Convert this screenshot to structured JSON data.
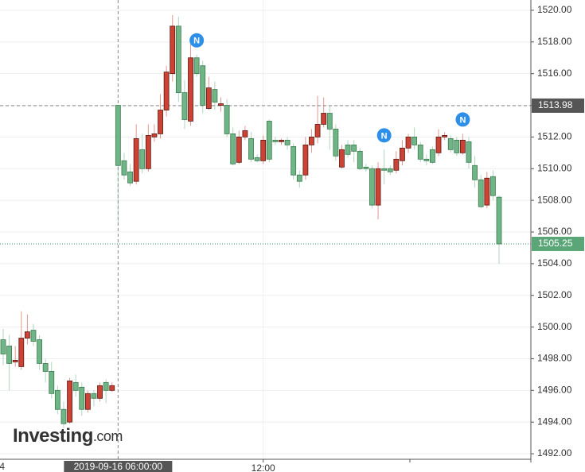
{
  "chart_data": {
    "type": "candlestick",
    "categories": [
      "4",
      null,
      null,
      null,
      null,
      null,
      null,
      null,
      null,
      null,
      null,
      null,
      null,
      null,
      null,
      null,
      null,
      null,
      null,
      "2019-09-16 06:00:00",
      null,
      null,
      null,
      null,
      null,
      null,
      null,
      null,
      null,
      null,
      null,
      null,
      null,
      null,
      null,
      null,
      null,
      null,
      null,
      null,
      null,
      null,
      null,
      "12:00",
      null,
      null,
      null,
      null,
      null,
      null,
      null,
      null,
      null,
      null,
      null,
      null,
      null,
      null,
      null,
      null,
      null,
      null,
      null,
      null,
      null,
      null,
      null,
      null,
      null,
      null,
      null,
      null,
      null,
      null,
      null,
      null,
      null,
      null,
      null,
      null,
      null,
      null,
      null
    ],
    "open": [
      1499.2,
      1498.8,
      1497.8,
      1497.5,
      1499.3,
      1499.8,
      1499.2,
      1497.7,
      1497.2,
      1496.0,
      1494.8,
      1494.0,
      1496.5,
      1496.2,
      1494.8,
      1495.8,
      1495.5,
      1496.5,
      1496.0,
      1514.0,
      1510.5,
      1509.8,
      1509.2,
      1511.2,
      1510.0,
      1512.0,
      1512.2,
      1513.7,
      1516.0,
      1519.0,
      1514.8,
      1513.0,
      1517.0,
      1516.5,
      1513.8,
      1515.0,
      1514.0,
      1514.0,
      1512.2,
      1510.4,
      1512.0,
      1511.9,
      1510.7,
      1510.5,
      1513.0,
      1511.8,
      1511.7,
      1511.8,
      1511.4,
      1509.6,
      1509.6,
      1511.5,
      1512.0,
      1512.8,
      1513.5,
      1512.5,
      1510.1,
      1511.5,
      1511.5,
      1511.1,
      1510.1,
      1510.0,
      1507.7,
      1510.0,
      1510.0,
      1509.9,
      1510.5,
      1511.3,
      1512.0,
      1511.5,
      1510.6,
      1511.2,
      1511.0,
      1512.0,
      1511.9,
      1511.8,
      1511.0,
      1511.7,
      1510.2,
      1509.3,
      1507.7,
      1509.5,
      1508.2
    ],
    "high": [
      1499.9,
      1499.5,
      1498.8,
      1501.0,
      1500.8,
      1500.2,
      1499.5,
      1498.0,
      1497.8,
      1496.3,
      1495.3,
      1496.8,
      1497.0,
      1496.5,
      1496.0,
      1496.0,
      1496.5,
      1496.7,
      1496.5,
      1514.0,
      1511.0,
      1510.3,
      1512.8,
      1512.2,
      1512.8,
      1512.8,
      1514.7,
      1516.5,
      1519.7,
      1519.6,
      1515.6,
      1518.0,
      1517.2,
      1516.8,
      1515.8,
      1515.5,
      1514.5,
      1514.4,
      1512.6,
      1512.4,
      1512.7,
      1512.3,
      1510.9,
      1512.1,
      1513.1,
      1512.0,
      1511.9,
      1512.0,
      1511.6,
      1509.9,
      1512.0,
      1512.5,
      1514.6,
      1514.5,
      1514.0,
      1512.8,
      1511.5,
      1511.8,
      1511.8,
      1511.3,
      1510.3,
      1510.2,
      1510.4,
      1511.2,
      1510.2,
      1511.1,
      1511.8,
      1512.2,
      1512.6,
      1511.7,
      1510.9,
      1511.4,
      1512.5,
      1512.3,
      1512.1,
      1512.0,
      1512.2,
      1512.0,
      1510.8,
      1509.6,
      1509.8,
      1509.9,
      1508.3
    ],
    "low": [
      1497.6,
      1496.0,
      1497.5,
      1497.3,
      1498.9,
      1498.8,
      1497.3,
      1496.5,
      1495.5,
      1494.5,
      1493.6,
      1493.9,
      1495.6,
      1494.4,
      1494.6,
      1495.0,
      1495.3,
      1495.2,
      1495.9,
      1506.6,
      1509.3,
      1508.9,
      1509.0,
      1509.7,
      1509.8,
      1511.7,
      1511.9,
      1513.3,
      1515.5,
      1514.2,
      1512.5,
      1512.7,
      1515.8,
      1513.5,
      1513.7,
      1513.7,
      1513.6,
      1512.0,
      1510.2,
      1510.3,
      1511.8,
      1510.4,
      1510.4,
      1510.3,
      1510.4,
      1511.5,
      1511.5,
      1511.2,
      1509.3,
      1508.8,
      1509.3,
      1511.0,
      1511.6,
      1512.6,
      1511.2,
      1510.5,
      1510.0,
      1510.7,
      1510.4,
      1509.9,
      1509.8,
      1507.5,
      1506.8,
      1509.0,
      1509.6,
      1509.7,
      1510.2,
      1511.0,
      1511.2,
      1510.4,
      1510.2,
      1510.3,
      1510.8,
      1511.8,
      1511.0,
      1510.8,
      1510.9,
      1510.0,
      1508.8,
      1507.5,
      1507.5,
      1508.0,
      1504.0
    ],
    "close": [
      1498.3,
      1497.7,
      1497.9,
      1499.3,
      1499.7,
      1499.1,
      1497.7,
      1497.2,
      1495.8,
      1494.8,
      1493.9,
      1496.6,
      1496.0,
      1494.8,
      1495.8,
      1495.5,
      1496.3,
      1496.0,
      1496.3,
      1510.2,
      1509.6,
      1509.1,
      1511.9,
      1510.0,
      1512.1,
      1512.2,
      1513.7,
      1516.1,
      1519.0,
      1514.8,
      1513.1,
      1517.0,
      1516.0,
      1514.0,
      1515.1,
      1514.2,
      1514.1,
      1512.2,
      1510.3,
      1512.0,
      1512.4,
      1510.6,
      1510.5,
      1511.8,
      1510.6,
      1511.7,
      1511.8,
      1511.5,
      1509.6,
      1509.2,
      1511.5,
      1512.0,
      1512.8,
      1513.5,
      1512.5,
      1510.8,
      1511.2,
      1510.9,
      1511.1,
      1510.0,
      1510.0,
      1507.7,
      1510.0,
      1509.9,
      1509.8,
      1510.6,
      1511.3,
      1512.0,
      1511.5,
      1510.6,
      1510.5,
      1510.4,
      1512.0,
      1512.1,
      1511.2,
      1511.0,
      1511.8,
      1510.4,
      1509.3,
      1507.6,
      1509.4,
      1508.3,
      1505.25
    ],
    "up_color": "#cc4335",
    "down_color": "#6fb585",
    "ylim": [
      1491.35,
      1520.65
    ],
    "yticks": [
      {
        "value": 1492,
        "label": "1492.00"
      },
      {
        "value": 1494,
        "label": "1494.00"
      },
      {
        "value": 1496,
        "label": "1496.00"
      },
      {
        "value": 1498,
        "label": "1498.00"
      },
      {
        "value": 1500,
        "label": "1500.00"
      },
      {
        "value": 1502,
        "label": "1502.00"
      },
      {
        "value": 1504,
        "label": "1504.00"
      },
      {
        "value": 1506,
        "label": "1506.00"
      },
      {
        "value": 1508,
        "label": "1508.00"
      },
      {
        "value": 1510,
        "label": "1510.00"
      },
      {
        "value": 1512,
        "label": "1512.00"
      },
      {
        "value": 1514,
        "label": "1514.00"
      },
      {
        "value": 1516,
        "label": "1516.00"
      },
      {
        "value": 1518,
        "label": "1518.00"
      },
      {
        "value": 1520,
        "label": "1520.00"
      }
    ],
    "grid": true,
    "crosshair_price": 1513.98,
    "last_price": 1505.25,
    "news": [
      {
        "label": "N",
        "candle": 32
      },
      {
        "label": "N",
        "candle": 63
      },
      {
        "label": "N",
        "candle": 76
      }
    ],
    "watermark": {
      "name": "Investing",
      "suffix": ".com"
    }
  }
}
